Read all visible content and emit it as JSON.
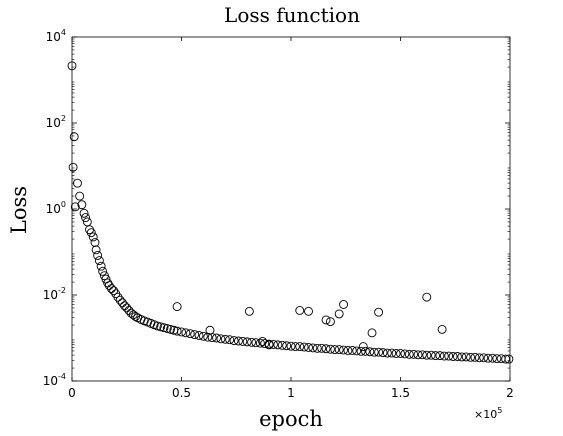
{
  "chart_data": {
    "type": "scatter",
    "title": "Loss function",
    "xlabel": "epoch",
    "ylabel": "Loss",
    "x_multiplier_base": "×10",
    "x_multiplier_exp": "5",
    "xlim": [
      0,
      2
    ],
    "ylim_log10": [
      -4,
      4
    ],
    "yscale": "log",
    "grid": false,
    "x_ticks": [
      {
        "value": 0,
        "label": "0"
      },
      {
        "value": 0.5,
        "label": "0.5"
      },
      {
        "value": 1,
        "label": "1"
      },
      {
        "value": 1.5,
        "label": "1.5"
      },
      {
        "value": 2,
        "label": "2"
      }
    ],
    "y_ticks": [
      {
        "exp": -4,
        "base": "10",
        "sup": "-4"
      },
      {
        "exp": -2,
        "base": "10",
        "sup": "-2"
      },
      {
        "exp": 0,
        "base": "10",
        "sup": "0"
      },
      {
        "exp": 2,
        "base": "10",
        "sup": "2"
      },
      {
        "exp": 4,
        "base": "10",
        "sup": "4"
      }
    ],
    "marker": "open-circle",
    "marker_color": "#000000",
    "series": [
      {
        "x": [
          0.0,
          0.01,
          0.025,
          0.035,
          0.045,
          0.055,
          0.062,
          0.07,
          0.08,
          0.088,
          0.097,
          0.105,
          0.11,
          0.117,
          0.125,
          0.133,
          0.14,
          0.148,
          0.155,
          0.163,
          0.17,
          0.18,
          0.19,
          0.2,
          0.21,
          0.22,
          0.23,
          0.24,
          0.25,
          0.26,
          0.27,
          0.28,
          0.29,
          0.3,
          0.315,
          0.33,
          0.345,
          0.36,
          0.375,
          0.39,
          0.405,
          0.42,
          0.435,
          0.45,
          0.465,
          0.48,
          0.5,
          0.52,
          0.54,
          0.56,
          0.58,
          0.6,
          0.62,
          0.64,
          0.66,
          0.68,
          0.7,
          0.72,
          0.74,
          0.76,
          0.78,
          0.8,
          0.82,
          0.84,
          0.86,
          0.88,
          0.9,
          0.92,
          0.94,
          0.96,
          0.98,
          1.0,
          1.02,
          1.04,
          1.06,
          1.08,
          1.1,
          1.12,
          1.14,
          1.16,
          1.18,
          1.2,
          1.22,
          1.24,
          1.26,
          1.28,
          1.3,
          1.32,
          1.34,
          1.36,
          1.38,
          1.4,
          1.42,
          1.44,
          1.46,
          1.48,
          1.5,
          1.52,
          1.54,
          1.56,
          1.58,
          1.6,
          1.62,
          1.64,
          1.66,
          1.68,
          1.7,
          1.72,
          1.74,
          1.76,
          1.78,
          1.8,
          1.82,
          1.84,
          1.86,
          1.88,
          1.9,
          1.92,
          1.94,
          1.96,
          1.98,
          1.995,
          0.005,
          0.015,
          0.48,
          0.63,
          0.81,
          0.87,
          0.9,
          1.04,
          1.08,
          1.16,
          1.18,
          1.22,
          1.24,
          1.33,
          1.37,
          1.4,
          1.62,
          1.69
        ],
        "log10_y": [
          3.33,
          1.68,
          0.6,
          0.3,
          0.1,
          -0.1,
          -0.2,
          -0.3,
          -0.48,
          -0.55,
          -0.65,
          -0.78,
          -0.95,
          -1.08,
          -1.2,
          -1.33,
          -1.45,
          -1.55,
          -1.63,
          -1.72,
          -1.78,
          -1.85,
          -1.9,
          -1.97,
          -2.05,
          -2.12,
          -2.18,
          -2.25,
          -2.3,
          -2.36,
          -2.42,
          -2.46,
          -2.5,
          -2.53,
          -2.57,
          -2.6,
          -2.63,
          -2.66,
          -2.69,
          -2.72,
          -2.74,
          -2.76,
          -2.78,
          -2.8,
          -2.82,
          -2.84,
          -2.86,
          -2.88,
          -2.9,
          -2.92,
          -2.94,
          -2.96,
          -2.98,
          -2.99,
          -3.0,
          -3.02,
          -3.03,
          -3.04,
          -3.06,
          -3.07,
          -3.08,
          -3.09,
          -3.1,
          -3.11,
          -3.12,
          -3.13,
          -3.14,
          -3.15,
          -3.16,
          -3.17,
          -3.18,
          -3.19,
          -3.2,
          -3.2,
          -3.21,
          -3.22,
          -3.23,
          -3.24,
          -3.24,
          -3.25,
          -3.26,
          -3.27,
          -3.27,
          -3.28,
          -3.29,
          -3.29,
          -3.3,
          -3.31,
          -3.31,
          -3.32,
          -3.33,
          -3.33,
          -3.34,
          -3.35,
          -3.35,
          -3.36,
          -3.36,
          -3.37,
          -3.38,
          -3.38,
          -3.39,
          -3.39,
          -3.4,
          -3.4,
          -3.41,
          -3.41,
          -3.42,
          -3.42,
          -3.43,
          -3.43,
          -3.44,
          -3.44,
          -3.45,
          -3.45,
          -3.46,
          -3.46,
          -3.47,
          -3.47,
          -3.48,
          -3.48,
          -3.49,
          -3.49,
          0.97,
          0.05,
          -2.27,
          -2.82,
          -2.38,
          -3.08,
          -3.16,
          -2.36,
          -2.38,
          -2.58,
          -2.62,
          -2.44,
          -2.22,
          -3.2,
          -2.88,
          -2.4,
          -2.05,
          -2.8
        ]
      }
    ]
  }
}
